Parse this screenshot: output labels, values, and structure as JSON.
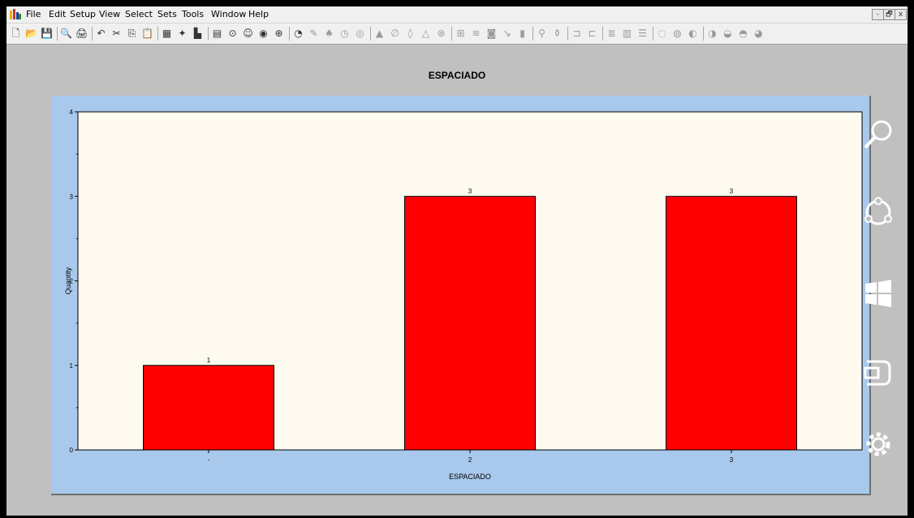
{
  "menu": {
    "items": [
      "File",
      "Edit",
      "Setup",
      "View",
      "Select",
      "Sets",
      "Tools",
      "Window",
      "Help"
    ]
  },
  "window_controls": {
    "minimize": "-",
    "restore": "🗗",
    "close": "x"
  },
  "toolbar": {
    "icons": [
      "new-file-icon",
      "open-folder-icon",
      "save-icon",
      "print-preview-icon",
      "print-icon",
      "undo-icon",
      "cut-icon",
      "copy-icon",
      "paste-icon",
      "table-icon",
      "wand-icon",
      "chart-builder-icon",
      "calculator-icon",
      "circle-tool-icon",
      "smiley-icon",
      "globe-icon",
      "target-icon",
      "pie-icon",
      "pen-icon",
      "run-icon",
      "clock-icon",
      "gauge-icon",
      "stamp-icon",
      "null-icon",
      "drop-icon",
      "triangle-icon",
      "crosshair-icon",
      "grid-icon",
      "curve-icon",
      "camera-icon",
      "arrow-icon",
      "bars-icon",
      "filter-icon",
      "funnel-icon",
      "split-icon",
      "merge-icon",
      "layers-icon",
      "palette-icon",
      "list-icon",
      "dial1-icon",
      "dial2-icon",
      "dial3-icon",
      "dial4-icon",
      "dial5-icon",
      "dial6-icon",
      "dial7-icon"
    ]
  },
  "colors": {
    "bar": "#ff0000",
    "plot_bg": "#fffaf0",
    "panel_bg": "#a8c8ec",
    "frame_bg": "#c0c0c0"
  },
  "side_icons": [
    "search-icon",
    "share-icon",
    "windows-icon",
    "devices-icon",
    "settings-icon"
  ],
  "chart_data": {
    "type": "bar",
    "title": "ESPACIADO",
    "xlabel": "ESPACIADO",
    "ylabel": "Quantity",
    "categories": [
      "-",
      "2",
      "3"
    ],
    "values": [
      1,
      3,
      3
    ],
    "data_labels": [
      "1",
      "3",
      "3"
    ],
    "ylim": [
      0,
      4
    ],
    "y_major_ticks": [
      0,
      1,
      2,
      3,
      4
    ],
    "grid": false
  }
}
